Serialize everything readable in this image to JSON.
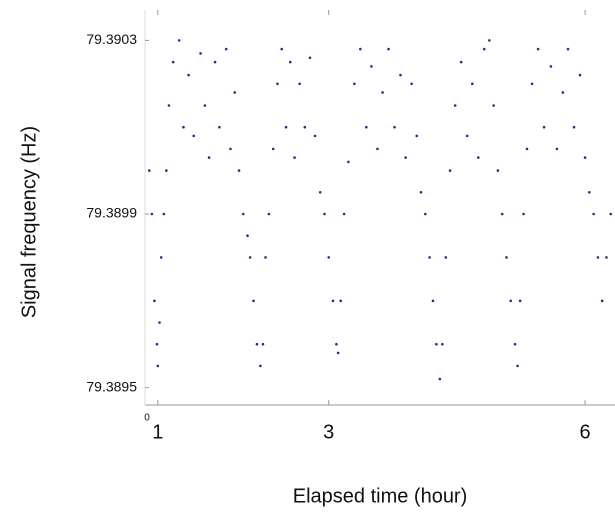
{
  "chart_data": {
    "type": "scatter",
    "xlabel": "Elapsed time (hour)",
    "ylabel": "Signal frequency (Hz)",
    "corner_label": "0",
    "xlim": [
      0.85,
      6.35
    ],
    "ylim": [
      79.38946,
      79.39037
    ],
    "xticks": [
      1,
      3,
      6
    ],
    "yticks": [
      79.3895,
      79.3899,
      79.3903
    ],
    "color": "#2a2a8c",
    "x": [
      0.9,
      0.93,
      0.96,
      0.99,
      1.0,
      1.02,
      1.04,
      1.07,
      1.1,
      1.13,
      1.18,
      1.25,
      1.3,
      1.36,
      1.42,
      1.5,
      1.55,
      1.6,
      1.67,
      1.72,
      1.8,
      1.85,
      1.9,
      1.95,
      2.0,
      2.05,
      2.08,
      2.12,
      2.16,
      2.2,
      2.23,
      2.26,
      2.3,
      2.35,
      2.4,
      2.45,
      2.5,
      2.55,
      2.6,
      2.66,
      2.72,
      2.78,
      2.84,
      2.9,
      2.95,
      3.0,
      3.05,
      3.09,
      3.11,
      3.14,
      3.18,
      3.23,
      3.3,
      3.37,
      3.44,
      3.5,
      3.57,
      3.63,
      3.7,
      3.77,
      3.84,
      3.9,
      3.97,
      4.03,
      4.08,
      4.13,
      4.18,
      4.22,
      4.26,
      4.3,
      4.33,
      4.37,
      4.42,
      4.48,
      4.55,
      4.62,
      4.68,
      4.75,
      4.82,
      4.88,
      4.93,
      4.98,
      5.03,
      5.08,
      5.13,
      5.18,
      5.21,
      5.24,
      5.28,
      5.32,
      5.38,
      5.45,
      5.52,
      5.6,
      5.67,
      5.74,
      5.8,
      5.87,
      5.94,
      6.0,
      6.05,
      6.1,
      6.15,
      6.2,
      6.25,
      6.3
    ],
    "values": [
      79.39,
      79.3899,
      79.3897,
      79.3896,
      79.38955,
      79.38965,
      79.3898,
      79.3899,
      79.39,
      79.39015,
      79.39025,
      79.3903,
      79.3901,
      79.39022,
      79.39008,
      79.39027,
      79.39015,
      79.39003,
      79.39025,
      79.3901,
      79.39028,
      79.39005,
      79.39018,
      79.39,
      79.3899,
      79.38985,
      79.3898,
      79.3897,
      79.3896,
      79.38955,
      79.3896,
      79.3898,
      79.3899,
      79.39005,
      79.3902,
      79.39028,
      79.3901,
      79.39025,
      79.39003,
      79.3902,
      79.3901,
      79.39026,
      79.39008,
      79.38995,
      79.3899,
      79.3898,
      79.3897,
      79.3896,
      79.38958,
      79.3897,
      79.3899,
      79.39002,
      79.3902,
      79.39028,
      79.3901,
      79.39024,
      79.39005,
      79.39018,
      79.39028,
      79.3901,
      79.39022,
      79.39003,
      79.3902,
      79.39008,
      79.38995,
      79.3899,
      79.3898,
      79.3897,
      79.3896,
      79.38952,
      79.3896,
      79.3898,
      79.39,
      79.39015,
      79.39025,
      79.39008,
      79.3902,
      79.39003,
      79.39028,
      79.3903,
      79.39015,
      79.39,
      79.3899,
      79.3898,
      79.3897,
      79.3896,
      79.38955,
      79.3897,
      79.3899,
      79.39005,
      79.3902,
      79.39028,
      79.3901,
      79.39024,
      79.39005,
      79.39018,
      79.39028,
      79.3901,
      79.39022,
      79.39003,
      79.38995,
      79.3899,
      79.3898,
      79.3897,
      79.3898,
      79.3899
    ]
  }
}
